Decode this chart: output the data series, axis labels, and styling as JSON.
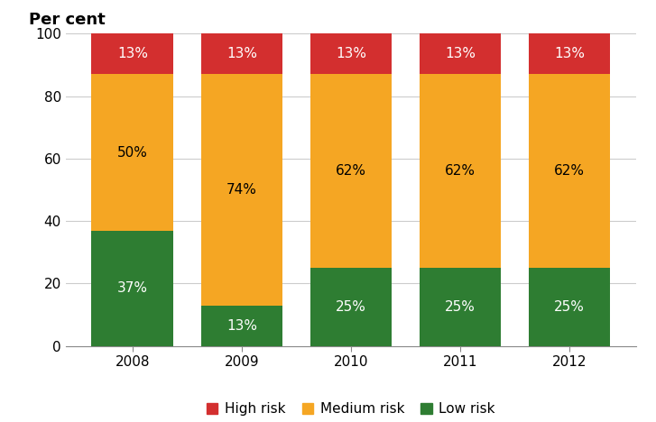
{
  "categories": [
    "2008",
    "2009",
    "2010",
    "2011",
    "2012"
  ],
  "low_risk": [
    37,
    13,
    25,
    25,
    25
  ],
  "medium_risk": [
    50,
    74,
    62,
    62,
    62
  ],
  "high_risk": [
    13,
    13,
    13,
    13,
    13
  ],
  "low_color": "#2e7d32",
  "medium_color": "#f5a623",
  "high_color": "#d32f2f",
  "ylabel": "Per cent",
  "ylim": [
    0,
    100
  ],
  "yticks": [
    0,
    20,
    40,
    60,
    80,
    100
  ],
  "legend_labels": [
    "High risk",
    "Medium risk",
    "Low risk"
  ],
  "bar_width": 0.75,
  "label_color_low": "#ffffff",
  "label_color_medium": "#000000",
  "label_color_high": "#ffffff",
  "background_color": "#ffffff",
  "grid_color": "#cccccc",
  "font_size_labels": 11,
  "font_size_axis": 11,
  "font_size_ylabel": 13
}
